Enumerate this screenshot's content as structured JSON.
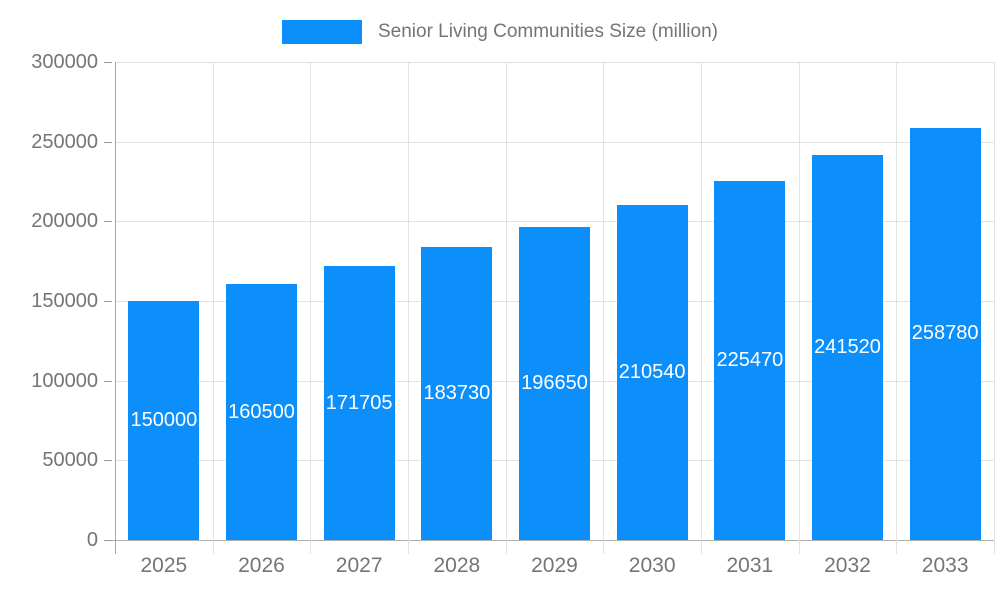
{
  "chart_data": {
    "type": "bar",
    "title": "",
    "series_name": "Senior Living Communities Size (million)",
    "legend_position": "top",
    "categories": [
      "2025",
      "2026",
      "2027",
      "2028",
      "2029",
      "2030",
      "2031",
      "2032",
      "2033"
    ],
    "values": [
      150000,
      160500,
      171705,
      183730,
      196650,
      210540,
      225470,
      241520,
      258780
    ],
    "xlabel": "",
    "ylabel": "",
    "ylim": [
      0,
      300000
    ],
    "y_ticks": [
      0,
      50000,
      100000,
      150000,
      200000,
      250000,
      300000
    ],
    "grid": true,
    "colors": {
      "bar": "#0d8ffb",
      "bar_value_label": "#ffffff",
      "axis_text": "#757575",
      "gridline": "#e2e2e2",
      "axis_line": "#a8a8a8"
    }
  }
}
